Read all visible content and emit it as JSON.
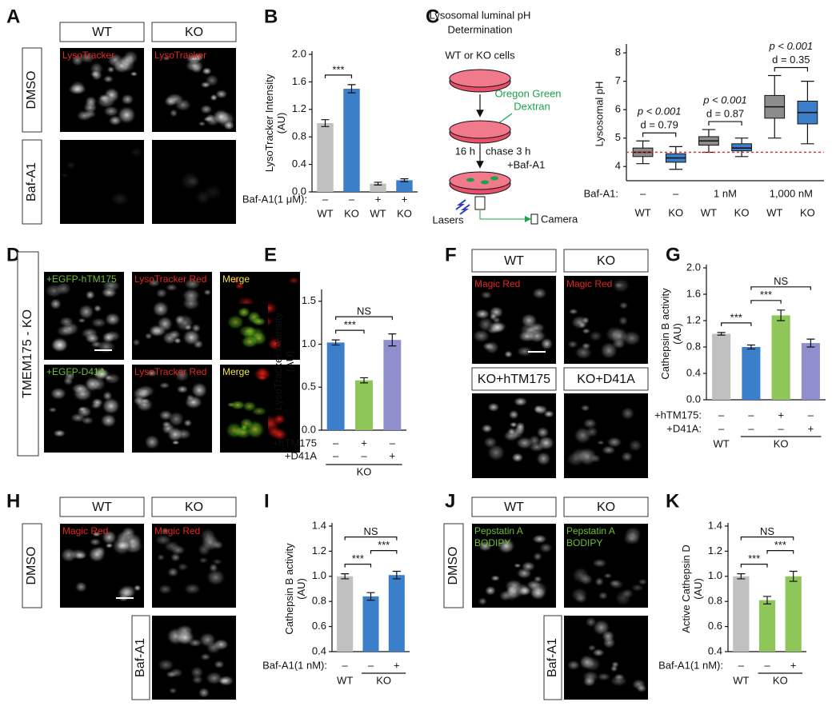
{
  "panel_letters": [
    "A",
    "B",
    "C",
    "D",
    "E",
    "F",
    "G",
    "H",
    "I",
    "J",
    "K"
  ],
  "figure_a": {
    "columns": [
      "WT",
      "KO"
    ],
    "rows": [
      "DMSO",
      "Baf-A1"
    ],
    "stain": "LysoTracker"
  },
  "schematic": {
    "title_lines": [
      "Lysosomal luminal pH",
      "Determination"
    ],
    "cells": "WT or KO cells",
    "dye_lines": [
      "Oregon Green",
      "Dextran"
    ],
    "time": "16 h",
    "chase": "chase 3 h",
    "treatment": "+Baf-A1",
    "lasers": "Lasers",
    "camera": "Camera"
  },
  "figure_d": {
    "side_label": "TMEM175 - KO",
    "rows": [
      [
        "+EGFP-hTM175",
        "LysoTracker Red",
        "Merge"
      ],
      [
        "+EGFP-D41A",
        "LysoTracker Red",
        "Merge"
      ]
    ]
  },
  "figure_f": {
    "headers": [
      "WT",
      "KO",
      "KO+hTM175",
      "KO+D41A"
    ],
    "stain": "Magic Red"
  },
  "figure_h": {
    "columns": [
      "WT",
      "KO"
    ],
    "rows": [
      "DMSO",
      "Baf-A1"
    ],
    "stain": "Magic Red"
  },
  "figure_j": {
    "columns": [
      "WT",
      "KO"
    ],
    "rows": [
      "DMSO",
      "Baf-A1"
    ],
    "stain_lines": [
      "Pepstatin A",
      "BODIPY"
    ]
  },
  "chart_data": [
    {
      "type": "bar",
      "y_label_lines": [
        "LysoTracker Intensity",
        "(AU)"
      ],
      "categories": [
        "WT",
        "KO",
        "WT",
        "KO"
      ],
      "values": [
        1.0,
        1.5,
        0.12,
        0.17
      ],
      "errors": [
        0.05,
        0.06,
        0.02,
        0.02
      ],
      "colors": [
        "#c0c0c0",
        "#3b7fca",
        "#c0c0c0",
        "#3b7fca"
      ],
      "ylim": [
        0,
        2.0
      ],
      "yticks": [
        {
          "value": 0,
          "label": "0.0"
        },
        0.4,
        0.8,
        1.2,
        1.6,
        {
          "value": 2.0,
          "label": "2.0"
        }
      ],
      "condition_rows": [
        {
          "label": "Baf-A1(1 μM):",
          "marks": [
            "–",
            "–",
            "+",
            "+"
          ]
        }
      ],
      "significance": [
        {
          "label": "***",
          "from": 0,
          "to": 1
        }
      ]
    },
    {
      "type": "box",
      "y_label_lines": [
        "Lysosomal pH"
      ],
      "categories": [
        "WT",
        "KO",
        "WT",
        "KO",
        "WT",
        "KO"
      ],
      "boxes": [
        {
          "whisker_low": 4.1,
          "q1": 4.35,
          "median": 4.5,
          "q3": 4.65,
          "whisker_high": 4.9
        },
        {
          "whisker_low": 3.9,
          "q1": 4.15,
          "median": 4.3,
          "q3": 4.45,
          "whisker_high": 4.7
        },
        {
          "whisker_low": 4.5,
          "q1": 4.75,
          "median": 4.9,
          "q3": 5.05,
          "whisker_high": 5.3
        },
        {
          "whisker_low": 4.35,
          "q1": 4.55,
          "median": 4.65,
          "q3": 4.8,
          "whisker_high": 5.0
        },
        {
          "whisker_low": 5.0,
          "q1": 5.7,
          "median": 6.1,
          "q3": 6.5,
          "whisker_high": 7.2
        },
        {
          "whisker_low": 4.8,
          "q1": 5.5,
          "median": 5.9,
          "q3": 6.3,
          "whisker_high": 7.0
        }
      ],
      "colors": [
        "#8c8c8c",
        "#3b7fca",
        "#8c8c8c",
        "#3b7fca",
        "#8c8c8c",
        "#3b7fca"
      ],
      "ylim": [
        3.5,
        8.2
      ],
      "yticks": [
        4,
        5,
        6,
        7,
        8
      ],
      "reference_line": {
        "value": 4.5,
        "color": "#e3261f"
      },
      "condition_row": {
        "label": "Baf-A1:",
        "groups": [
          {
            "label": "–",
            "from": 0,
            "to": 0
          },
          {
            "label": "–",
            "from": 1,
            "to": 1
          },
          {
            "label": "1 nM",
            "from": 2,
            "to": 3
          },
          {
            "label": "1,000 nM",
            "from": 4,
            "to": 5
          }
        ]
      },
      "annotations": [
        {
          "lines": [
            "p < 0.001",
            "d = 0.79"
          ],
          "from": 0,
          "to": 1
        },
        {
          "lines": [
            "p < 0.001",
            "d = 0.87"
          ],
          "from": 2,
          "to": 3
        },
        {
          "lines": [
            "p < 0.001",
            "d = 0.35"
          ],
          "from": 4,
          "to": 5
        }
      ]
    },
    {
      "type": "bar",
      "y_label_lines": [
        "LysoTracker intensity",
        "(AU)"
      ],
      "categories": [
        null,
        null,
        null
      ],
      "values": [
        1.02,
        0.58,
        1.05
      ],
      "errors": [
        0.03,
        0.03,
        0.07
      ],
      "colors": [
        "#3b7fca",
        "#8fc65a",
        "#8e8fcc"
      ],
      "ylim": [
        0,
        1.6
      ],
      "yticks": [
        {
          "value": 0,
          "label": "0.0"
        },
        0.5,
        {
          "value": 1.0,
          "label": "1.0"
        },
        1.5
      ],
      "condition_rows": [
        {
          "label": "+hTM175",
          "marks": [
            "–",
            "+",
            "–"
          ]
        },
        {
          "label": "+D41A",
          "marks": [
            "–",
            "–",
            "+"
          ]
        }
      ],
      "groups": [
        {
          "label": "KO",
          "from": 0,
          "to": 2
        }
      ],
      "significance": [
        {
          "label": "***",
          "from": 0,
          "to": 1
        },
        {
          "label": "NS",
          "from": 0,
          "to": 2
        }
      ]
    },
    {
      "type": "bar",
      "y_label_lines": [
        "Cathepsin B activity",
        "(AU)"
      ],
      "categories": [
        null,
        null,
        null,
        null
      ],
      "values": [
        1.0,
        0.8,
        1.28,
        0.86
      ],
      "errors": [
        0.02,
        0.03,
        0.08,
        0.06
      ],
      "colors": [
        "#c0c0c0",
        "#3b7fca",
        "#8fc65a",
        "#8e8fcc"
      ],
      "ylim": [
        0,
        2.0
      ],
      "yticks": [
        {
          "value": 0,
          "label": "0.0"
        },
        0.4,
        0.8,
        1.2,
        1.6,
        {
          "value": 2.0,
          "label": "2.0"
        }
      ],
      "condition_rows": [
        {
          "label": "+hTM175:",
          "marks": [
            "–",
            "–",
            "+",
            "–"
          ]
        },
        {
          "label": "+D41A:",
          "marks": [
            "–",
            "–",
            "–",
            "+"
          ]
        }
      ],
      "groups": [
        {
          "label": "WT",
          "from": 0,
          "to": 0
        },
        {
          "label": "KO",
          "from": 1,
          "to": 3
        }
      ],
      "significance": [
        {
          "label": "***",
          "from": 0,
          "to": 1
        },
        {
          "label": "***",
          "from": 1,
          "to": 2
        },
        {
          "label": "NS",
          "from": 1,
          "to": 3
        }
      ]
    },
    {
      "type": "bar",
      "y_label_lines": [
        "Cathepsin B activity",
        "(AU)"
      ],
      "categories": [
        null,
        null,
        null
      ],
      "values": [
        1.0,
        0.84,
        1.01
      ],
      "errors": [
        0.02,
        0.03,
        0.03
      ],
      "colors": [
        "#c0c0c0",
        "#3b7fca",
        "#3b7fca"
      ],
      "ylim": [
        0.4,
        1.4
      ],
      "yticks": [
        0.4,
        0.6,
        0.8,
        {
          "value": 1.0,
          "label": "1.0"
        },
        1.2,
        1.4
      ],
      "condition_rows": [
        {
          "label": "Baf-A1(1 nM):",
          "marks": [
            "–",
            "–",
            "+"
          ]
        }
      ],
      "groups": [
        {
          "label": "WT",
          "from": 0,
          "to": 0
        },
        {
          "label": "KO",
          "from": 1,
          "to": 2
        }
      ],
      "significance": [
        {
          "label": "***",
          "from": 0,
          "to": 1
        },
        {
          "label": "***",
          "from": 1,
          "to": 2
        },
        {
          "label": "NS",
          "from": 0,
          "to": 2
        }
      ]
    },
    {
      "type": "bar",
      "y_label_lines": [
        "Active Cathepsin D",
        "(AU)"
      ],
      "categories": [
        null,
        null,
        null
      ],
      "values": [
        1.0,
        0.81,
        1.0
      ],
      "errors": [
        0.02,
        0.03,
        0.04
      ],
      "colors": [
        "#c0c0c0",
        "#8fc65a",
        "#8fc65a"
      ],
      "ylim": [
        0.4,
        1.4
      ],
      "yticks": [
        0.4,
        0.6,
        0.8,
        {
          "value": 1.0,
          "label": "1.0"
        },
        1.2,
        1.4
      ],
      "condition_rows": [
        {
          "label": "Baf-A1(1 nM):",
          "marks": [
            "–",
            "–",
            "+"
          ]
        }
      ],
      "groups": [
        {
          "label": "WT",
          "from": 0,
          "to": 0
        },
        {
          "label": "KO",
          "from": 1,
          "to": 2
        }
      ],
      "significance": [
        {
          "label": "***",
          "from": 0,
          "to": 1
        },
        {
          "label": "***",
          "from": 1,
          "to": 2
        },
        {
          "label": "NS",
          "from": 0,
          "to": 2
        }
      ]
    }
  ]
}
